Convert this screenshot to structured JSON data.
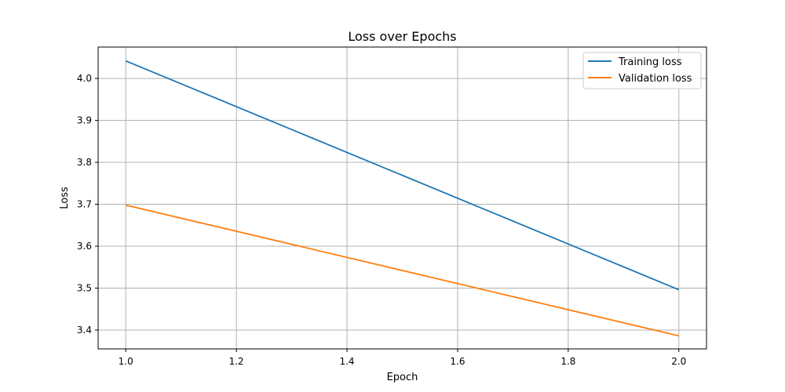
{
  "chart_data": {
    "type": "line",
    "title": "Loss over Epochs",
    "xlabel": "Epoch",
    "ylabel": "Loss",
    "xlim": [
      0.95,
      2.05
    ],
    "ylim": [
      3.355,
      4.075
    ],
    "xticks": [
      "1.0",
      "1.2",
      "1.4",
      "1.6",
      "1.8",
      "2.0"
    ],
    "yticks": [
      "3.4",
      "3.5",
      "3.6",
      "3.7",
      "3.8",
      "3.9",
      "4.0"
    ],
    "grid": true,
    "legend_position": "upper right",
    "x": [
      1.0,
      2.0
    ],
    "series": [
      {
        "name": "Training loss",
        "color": "#1f77b4",
        "values": [
          4.042,
          3.496
        ]
      },
      {
        "name": "Validation loss",
        "color": "#ff7f0e",
        "values": [
          3.698,
          3.386
        ]
      }
    ]
  }
}
